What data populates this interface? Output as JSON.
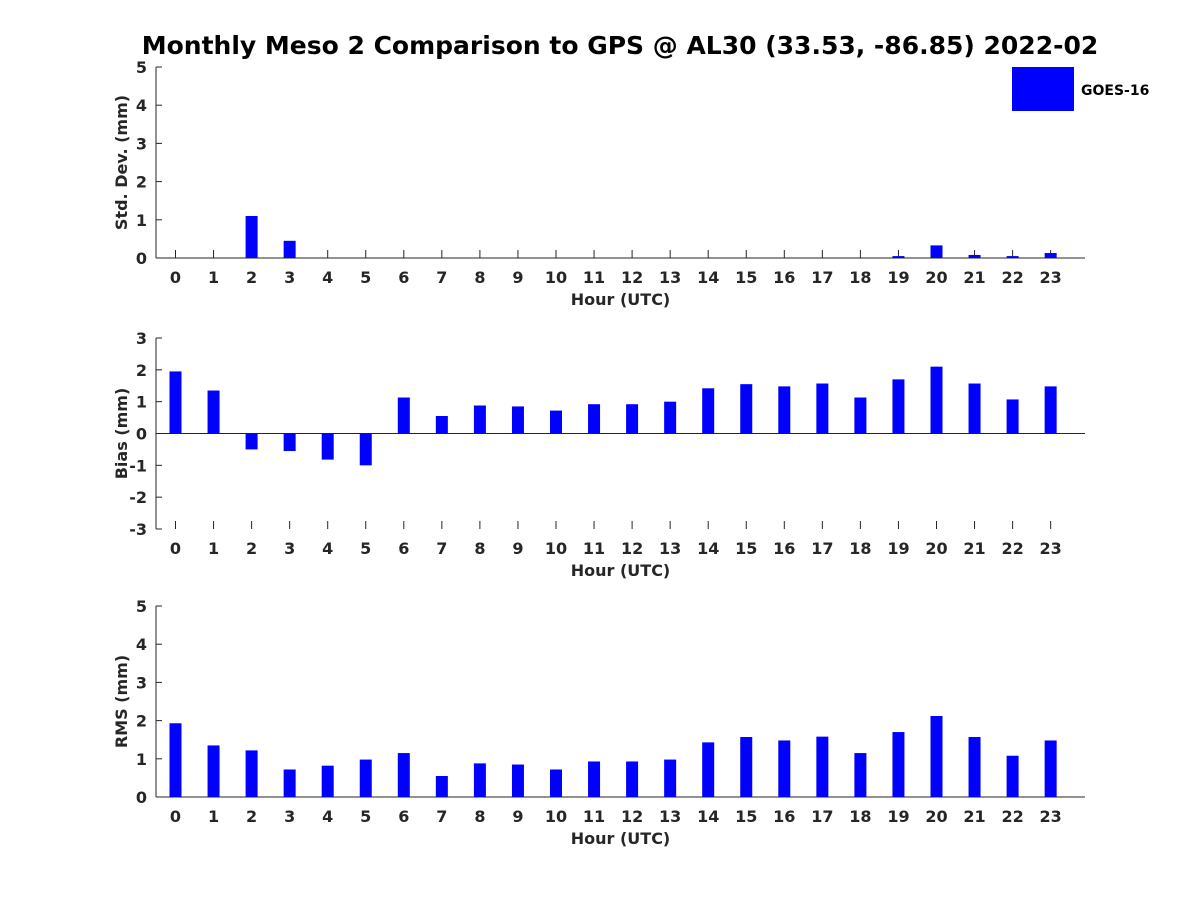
{
  "figure": {
    "title": "Monthly Meso 2 Comparison to GPS @ AL30 (33.53, -86.85) 2022-02",
    "legend": {
      "label": "GOES-16",
      "color": "#0000ff",
      "placement": "top-right"
    }
  },
  "chart_data": [
    {
      "type": "bar",
      "title": "",
      "xlabel": "Hour (UTC)",
      "ylabel": "Std. Dev. (mm)",
      "ylim": [
        0,
        5
      ],
      "yticks": [
        "0",
        "1",
        "2",
        "3",
        "4",
        "5"
      ],
      "categories": [
        "0",
        "1",
        "2",
        "3",
        "4",
        "5",
        "6",
        "7",
        "8",
        "9",
        "10",
        "11",
        "12",
        "13",
        "14",
        "15",
        "16",
        "17",
        "18",
        "19",
        "20",
        "21",
        "22",
        "23"
      ],
      "series": [
        {
          "name": "GOES-16",
          "color": "#0000ff",
          "values": [
            0,
            0,
            1.1,
            0.45,
            0,
            0,
            0,
            0,
            0,
            0,
            0,
            0,
            0,
            0,
            0,
            0,
            0,
            0,
            0,
            0.05,
            0.33,
            0.08,
            0.05,
            0.13
          ]
        }
      ],
      "grid": false
    },
    {
      "type": "bar",
      "title": "",
      "xlabel": "Hour (UTC)",
      "ylabel": "Bias (mm)",
      "ylim": [
        -3,
        3
      ],
      "yticks": [
        "-3",
        "-2",
        "-1",
        "0",
        "1",
        "2",
        "3"
      ],
      "categories": [
        "0",
        "1",
        "2",
        "3",
        "4",
        "5",
        "6",
        "7",
        "8",
        "9",
        "10",
        "11",
        "12",
        "13",
        "14",
        "15",
        "16",
        "17",
        "18",
        "19",
        "20",
        "21",
        "22",
        "23"
      ],
      "series": [
        {
          "name": "GOES-16",
          "color": "#0000ff",
          "values": [
            1.95,
            1.35,
            -0.5,
            -0.55,
            -0.82,
            -1.0,
            1.13,
            0.55,
            0.88,
            0.85,
            0.72,
            0.92,
            0.92,
            1.0,
            1.42,
            1.55,
            1.48,
            1.57,
            1.13,
            1.7,
            2.1,
            1.57,
            1.07,
            1.48
          ]
        }
      ],
      "grid": false
    },
    {
      "type": "bar",
      "title": "",
      "xlabel": "Hour (UTC)",
      "ylabel": "RMS (mm)",
      "ylim": [
        0,
        5
      ],
      "yticks": [
        "0",
        "1",
        "2",
        "3",
        "4",
        "5"
      ],
      "categories": [
        "0",
        "1",
        "2",
        "3",
        "4",
        "5",
        "6",
        "7",
        "8",
        "9",
        "10",
        "11",
        "12",
        "13",
        "14",
        "15",
        "16",
        "17",
        "18",
        "19",
        "20",
        "21",
        "22",
        "23"
      ],
      "series": [
        {
          "name": "GOES-16",
          "color": "#0000ff",
          "values": [
            1.93,
            1.35,
            1.22,
            0.72,
            0.82,
            0.98,
            1.15,
            0.55,
            0.88,
            0.85,
            0.72,
            0.93,
            0.93,
            0.98,
            1.43,
            1.57,
            1.48,
            1.58,
            1.15,
            1.7,
            2.12,
            1.57,
            1.08,
            1.48
          ]
        }
      ],
      "grid": false
    }
  ]
}
